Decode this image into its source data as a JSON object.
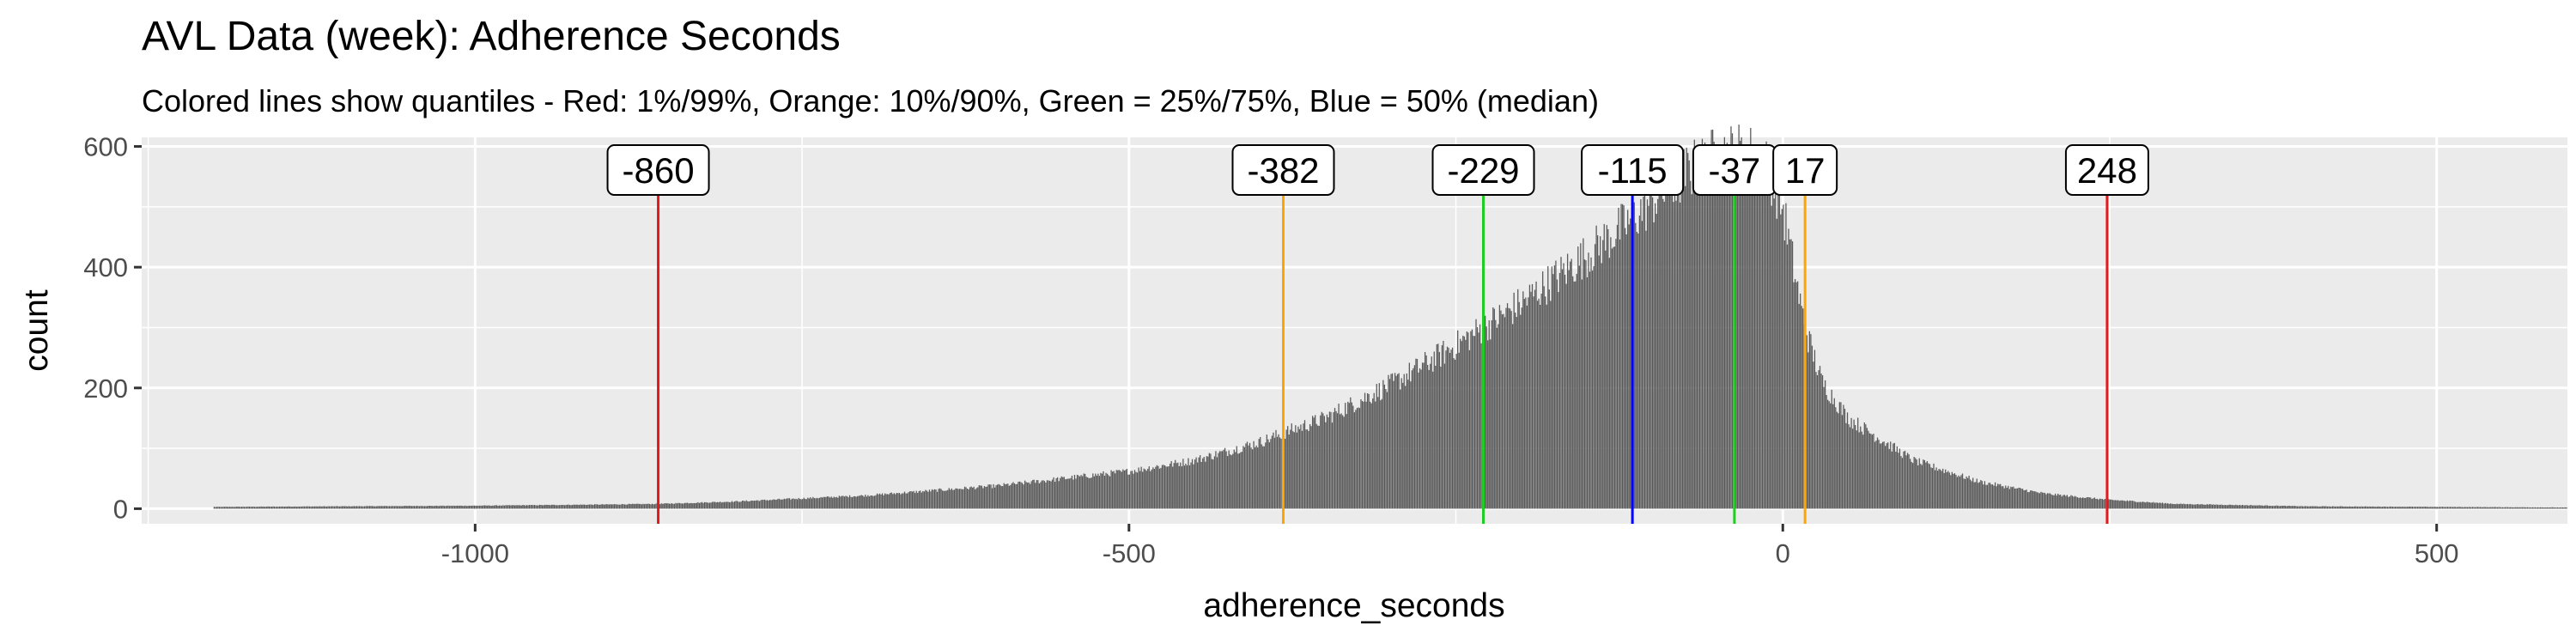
{
  "chart_data": {
    "type": "bar",
    "title": "AVL Data (week): Adherence Seconds",
    "subtitle": "Colored lines show quantiles - Red: 1%/99%, Orange: 10%/90%, Green = 25%/75%, Blue = 50% (median)",
    "xlabel": "adherence_seconds",
    "ylabel": "count",
    "xlim": [
      -1255,
      600
    ],
    "ylim": [
      -25,
      615
    ],
    "x_ticks": [
      -1000,
      -500,
      0,
      500
    ],
    "x_tick_labels": [
      "-1000",
      "-500",
      "0",
      "500"
    ],
    "y_ticks": [
      0,
      200,
      400,
      600
    ],
    "y_tick_labels": [
      "0",
      "200",
      "400",
      "600"
    ],
    "grid": true,
    "bar_color": "#595959",
    "histogram_density_points": [
      [
        -1200,
        3
      ],
      [
        -1100,
        4
      ],
      [
        -1000,
        5
      ],
      [
        -900,
        7
      ],
      [
        -860,
        8
      ],
      [
        -800,
        12
      ],
      [
        -700,
        22
      ],
      [
        -600,
        38
      ],
      [
        -500,
        62
      ],
      [
        -450,
        80
      ],
      [
        -400,
        110
      ],
      [
        -382,
        125
      ],
      [
        -350,
        150
      ],
      [
        -300,
        205
      ],
      [
        -250,
        270
      ],
      [
        -229,
        300
      ],
      [
        -200,
        340
      ],
      [
        -150,
        420
      ],
      [
        -115,
        480
      ],
      [
        -100,
        510
      ],
      [
        -75,
        555
      ],
      [
        -50,
        585
      ],
      [
        -37,
        590
      ],
      [
        -20,
        585
      ],
      [
        -10,
        560
      ],
      [
        0,
        500
      ],
      [
        10,
        380
      ],
      [
        17,
        300
      ],
      [
        30,
        210
      ],
      [
        50,
        150
      ],
      [
        100,
        80
      ],
      [
        150,
        45
      ],
      [
        200,
        25
      ],
      [
        248,
        15
      ],
      [
        300,
        8
      ],
      [
        400,
        4
      ],
      [
        500,
        3
      ],
      [
        600,
        2
      ]
    ],
    "quantiles": [
      {
        "label": "1%",
        "value": -860,
        "text": "-860",
        "color": "#e31a1c"
      },
      {
        "label": "10%",
        "value": -382,
        "text": "-382",
        "color": "#ffa500"
      },
      {
        "label": "25%",
        "value": -229,
        "text": "-229",
        "color": "#22cc22"
      },
      {
        "label": "50%",
        "value": -115,
        "text": "-115",
        "color": "#0000ff"
      },
      {
        "label": "75%",
        "value": -37,
        "text": "-37",
        "color": "#22cc22"
      },
      {
        "label": "90%",
        "value": 17,
        "text": "17",
        "color": "#ffa500"
      },
      {
        "label": "99%",
        "value": 248,
        "text": "248",
        "color": "#e31a1c"
      }
    ]
  }
}
